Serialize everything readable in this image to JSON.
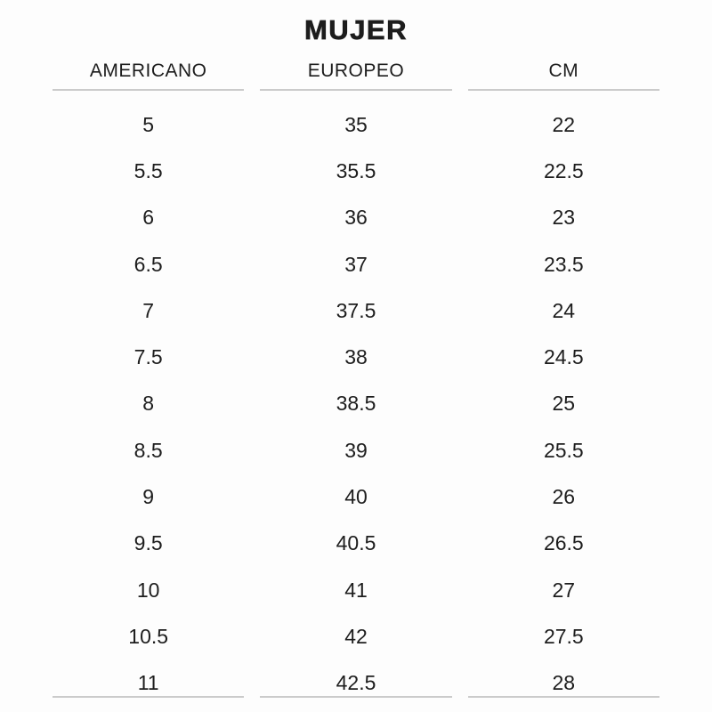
{
  "page": {
    "title": "MUJER"
  },
  "colors": {
    "background": "#fdfdfd",
    "text": "#1d1d1d",
    "rule": "#cbcbcb"
  },
  "table": {
    "columns": [
      "AMERICANO",
      "EUROPEO",
      "CM"
    ],
    "rows": [
      [
        "5",
        "35",
        "22"
      ],
      [
        "5.5",
        "35.5",
        "22.5"
      ],
      [
        "6",
        "36",
        "23"
      ],
      [
        "6.5",
        "37",
        "23.5"
      ],
      [
        "7",
        "37.5",
        "24"
      ],
      [
        "7.5",
        "38",
        "24.5"
      ],
      [
        "8",
        "38.5",
        "25"
      ],
      [
        "8.5",
        "39",
        "25.5"
      ],
      [
        "9",
        "40",
        "26"
      ],
      [
        "9.5",
        "40.5",
        "26.5"
      ],
      [
        "10",
        "41",
        "27"
      ],
      [
        "10.5",
        "42",
        "27.5"
      ],
      [
        "11",
        "42.5",
        "28"
      ]
    ]
  }
}
